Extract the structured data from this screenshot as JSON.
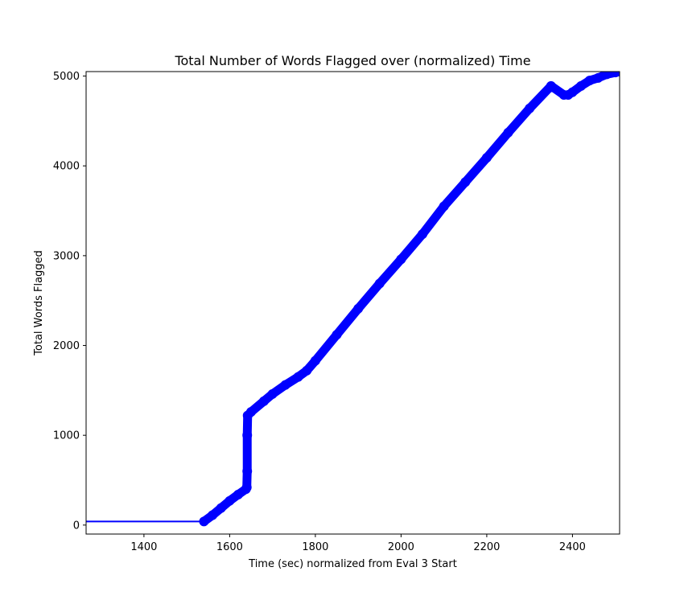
{
  "chart_data": {
    "type": "line",
    "title": "Total Number of Words Flagged over (normalized) Time",
    "xlabel": "Time (sec) normalized from Eval 3 Start",
    "ylabel": "Total Words Flagged",
    "xlim": [
      1265,
      2510
    ],
    "ylim": [
      -100,
      5050
    ],
    "xticks": [
      1400,
      1600,
      1800,
      2000,
      2200,
      2400
    ],
    "yticks": [
      0,
      1000,
      2000,
      3000,
      4000,
      5000
    ],
    "grid": false,
    "color": "#0000ff",
    "series": [
      {
        "name": "",
        "style": "line",
        "x": [
          1265,
          1540
        ],
        "y": [
          40,
          40
        ]
      },
      {
        "name": "",
        "style": "markers",
        "x": [
          1540,
          1560,
          1580,
          1600,
          1620,
          1638,
          1640,
          1641,
          1641,
          1642,
          1650,
          1680,
          1700,
          1730,
          1760,
          1780,
          1800,
          1850,
          1900,
          1950,
          2000,
          2050,
          2100,
          2150,
          2200,
          2250,
          2300,
          2350,
          2380,
          2390,
          2400,
          2420,
          2440,
          2460,
          2480,
          2500,
          2510
        ],
        "y": [
          40,
          110,
          190,
          270,
          340,
          400,
          420,
          600,
          1000,
          1220,
          1260,
          1380,
          1460,
          1560,
          1650,
          1720,
          1830,
          2120,
          2410,
          2690,
          2960,
          3240,
          3550,
          3820,
          4090,
          4370,
          4640,
          4890,
          4790,
          4790,
          4820,
          4890,
          4950,
          4980,
          5020,
          5040,
          5050
        ]
      }
    ]
  }
}
